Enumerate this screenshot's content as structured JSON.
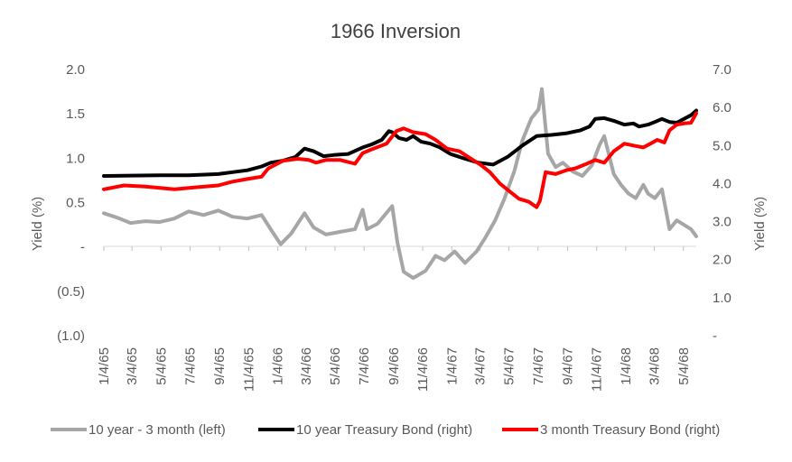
{
  "chart_data": {
    "type": "line",
    "title": "1966 Inversion",
    "ylabel_left": "Yield (%)",
    "ylabel_right": "Yield (%)",
    "ylim_left": [
      -1.0,
      2.0
    ],
    "ylim_right": [
      0.0,
      7.0
    ],
    "left_ticks": [
      {
        "value": 2.0,
        "label": "2.0"
      },
      {
        "value": 1.5,
        "label": "1.5"
      },
      {
        "value": 1.0,
        "label": "1.0"
      },
      {
        "value": 0.5,
        "label": "0.5"
      },
      {
        "value": 0.0,
        "label": "-"
      },
      {
        "value": -0.5,
        "label": "(0.5)"
      },
      {
        "value": -1.0,
        "label": "(1.0)"
      }
    ],
    "right_ticks": [
      {
        "value": 7.0,
        "label": "7.0"
      },
      {
        "value": 6.0,
        "label": "6.0"
      },
      {
        "value": 5.0,
        "label": "5.0"
      },
      {
        "value": 4.0,
        "label": "4.0"
      },
      {
        "value": 3.0,
        "label": "3.0"
      },
      {
        "value": 2.0,
        "label": "2.0"
      },
      {
        "value": 1.0,
        "label": "1.0"
      },
      {
        "value": 0.0,
        "label": "-"
      }
    ],
    "x_domain": [
      "1/4/65",
      "5/31/68"
    ],
    "x_ticks": [
      "1/4/65",
      "3/4/65",
      "5/4/65",
      "7/4/65",
      "9/4/65",
      "11/4/65",
      "1/4/66",
      "3/4/66",
      "5/4/66",
      "7/4/66",
      "9/4/66",
      "11/4/66",
      "1/4/67",
      "3/4/67",
      "5/4/67",
      "7/4/67",
      "9/4/67",
      "11/4/67",
      "1/4/68",
      "3/4/68",
      "5/4/68"
    ],
    "grid": false,
    "legend_position": "bottom",
    "series": [
      {
        "name": "10 year - 3 month (left)",
        "axis": "left",
        "color": "#a6a6a6",
        "points": [
          [
            "1/4/65",
            0.38
          ],
          [
            "2/1/65",
            0.33
          ],
          [
            "3/1/65",
            0.27
          ],
          [
            "4/1/65",
            0.29
          ],
          [
            "5/1/65",
            0.28
          ],
          [
            "6/1/65",
            0.32
          ],
          [
            "7/1/65",
            0.4
          ],
          [
            "8/1/65",
            0.36
          ],
          [
            "9/1/65",
            0.41
          ],
          [
            "10/1/65",
            0.34
          ],
          [
            "11/1/65",
            0.32
          ],
          [
            "12/1/65",
            0.36
          ],
          [
            "12/20/65",
            0.2
          ],
          [
            "1/10/66",
            0.03
          ],
          [
            "2/1/66",
            0.15
          ],
          [
            "3/1/66",
            0.38
          ],
          [
            "3/20/66",
            0.22
          ],
          [
            "4/15/66",
            0.14
          ],
          [
            "5/15/66",
            0.17
          ],
          [
            "6/15/66",
            0.2
          ],
          [
            "7/1/66",
            0.42
          ],
          [
            "7/10/66",
            0.2
          ],
          [
            "8/1/66",
            0.26
          ],
          [
            "9/1/66",
            0.46
          ],
          [
            "9/12/66",
            0.05
          ],
          [
            "9/25/66",
            -0.28
          ],
          [
            "10/15/66",
            -0.35
          ],
          [
            "11/10/66",
            -0.27
          ],
          [
            "12/1/66",
            -0.1
          ],
          [
            "12/20/66",
            -0.15
          ],
          [
            "1/10/67",
            -0.05
          ],
          [
            "2/1/67",
            -0.18
          ],
          [
            "2/25/67",
            -0.05
          ],
          [
            "3/15/67",
            0.1
          ],
          [
            "4/5/67",
            0.3
          ],
          [
            "4/25/67",
            0.55
          ],
          [
            "5/15/67",
            0.85
          ],
          [
            "6/1/67",
            1.2
          ],
          [
            "6/20/67",
            1.45
          ],
          [
            "7/5/67",
            1.55
          ],
          [
            "7/12/67",
            1.78
          ],
          [
            "7/25/67",
            1.05
          ],
          [
            "8/10/67",
            0.9
          ],
          [
            "8/25/67",
            0.95
          ],
          [
            "9/15/67",
            0.85
          ],
          [
            "10/5/67",
            0.8
          ],
          [
            "10/25/67",
            0.92
          ],
          [
            "11/10/67",
            1.15
          ],
          [
            "11/20/67",
            1.25
          ],
          [
            "12/10/67",
            0.82
          ],
          [
            "12/25/67",
            0.7
          ],
          [
            "1/10/68",
            0.6
          ],
          [
            "1/25/68",
            0.55
          ],
          [
            "2/10/68",
            0.7
          ],
          [
            "2/20/68",
            0.6
          ],
          [
            "3/5/68",
            0.55
          ],
          [
            "3/20/68",
            0.65
          ],
          [
            "4/5/68",
            0.2
          ],
          [
            "4/20/68",
            0.3
          ],
          [
            "5/5/68",
            0.25
          ],
          [
            "5/20/68",
            0.2
          ],
          [
            "5/31/68",
            0.12
          ]
        ]
      },
      {
        "name": "10 year Treasury Bond (right)",
        "axis": "right",
        "color": "#000000",
        "points": [
          [
            "1/4/65",
            4.2
          ],
          [
            "3/1/65",
            4.21
          ],
          [
            "5/1/65",
            4.22
          ],
          [
            "7/1/65",
            4.22
          ],
          [
            "9/1/65",
            4.25
          ],
          [
            "10/1/65",
            4.3
          ],
          [
            "11/1/65",
            4.35
          ],
          [
            "12/1/65",
            4.45
          ],
          [
            "12/20/65",
            4.55
          ],
          [
            "1/15/66",
            4.6
          ],
          [
            "2/10/66",
            4.7
          ],
          [
            "3/1/66",
            4.92
          ],
          [
            "3/20/66",
            4.85
          ],
          [
            "4/10/66",
            4.72
          ],
          [
            "5/1/66",
            4.75
          ],
          [
            "6/1/66",
            4.78
          ],
          [
            "7/1/66",
            4.95
          ],
          [
            "7/20/66",
            5.03
          ],
          [
            "8/10/66",
            5.15
          ],
          [
            "8/25/66",
            5.38
          ],
          [
            "9/1/66",
            5.35
          ],
          [
            "9/15/66",
            5.2
          ],
          [
            "10/1/66",
            5.15
          ],
          [
            "10/15/66",
            5.25
          ],
          [
            "11/1/66",
            5.1
          ],
          [
            "11/20/66",
            5.05
          ],
          [
            "12/10/66",
            4.95
          ],
          [
            "1/1/67",
            4.78
          ],
          [
            "2/1/67",
            4.65
          ],
          [
            "3/1/67",
            4.55
          ],
          [
            "4/1/67",
            4.5
          ],
          [
            "5/1/67",
            4.7
          ],
          [
            "6/1/67",
            5.0
          ],
          [
            "7/1/67",
            5.25
          ],
          [
            "8/1/67",
            5.28
          ],
          [
            "9/1/67",
            5.32
          ],
          [
            "10/1/67",
            5.4
          ],
          [
            "10/20/67",
            5.5
          ],
          [
            "11/1/67",
            5.7
          ],
          [
            "11/20/67",
            5.72
          ],
          [
            "12/10/67",
            5.65
          ],
          [
            "1/1/68",
            5.55
          ],
          [
            "1/20/68",
            5.58
          ],
          [
            "2/1/68",
            5.5
          ],
          [
            "2/20/68",
            5.55
          ],
          [
            "3/5/68",
            5.62
          ],
          [
            "3/20/68",
            5.7
          ],
          [
            "4/5/68",
            5.62
          ],
          [
            "4/20/68",
            5.6
          ],
          [
            "5/5/68",
            5.7
          ],
          [
            "5/20/68",
            5.8
          ],
          [
            "5/31/68",
            5.92
          ]
        ]
      },
      {
        "name": "3 month Treasury Bond (right)",
        "axis": "right",
        "color": "#ff0000",
        "points": [
          [
            "1/4/65",
            3.85
          ],
          [
            "2/15/65",
            3.95
          ],
          [
            "4/1/65",
            3.92
          ],
          [
            "6/1/65",
            3.85
          ],
          [
            "7/15/65",
            3.9
          ],
          [
            "9/1/65",
            3.95
          ],
          [
            "10/1/65",
            4.05
          ],
          [
            "11/1/65",
            4.12
          ],
          [
            "12/1/65",
            4.18
          ],
          [
            "12/15/65",
            4.4
          ],
          [
            "1/15/66",
            4.6
          ],
          [
            "2/15/66",
            4.65
          ],
          [
            "3/10/66",
            4.62
          ],
          [
            "3/25/66",
            4.55
          ],
          [
            "4/15/66",
            4.62
          ],
          [
            "5/15/66",
            4.62
          ],
          [
            "6/15/66",
            4.52
          ],
          [
            "7/1/66",
            4.8
          ],
          [
            "7/20/66",
            4.9
          ],
          [
            "8/20/66",
            5.05
          ],
          [
            "9/10/66",
            5.38
          ],
          [
            "9/25/66",
            5.45
          ],
          [
            "10/15/66",
            5.35
          ],
          [
            "11/10/66",
            5.3
          ],
          [
            "12/1/66",
            5.15
          ],
          [
            "12/25/66",
            4.92
          ],
          [
            "1/20/67",
            4.85
          ],
          [
            "2/10/67",
            4.68
          ],
          [
            "3/5/67",
            4.5
          ],
          [
            "3/25/67",
            4.3
          ],
          [
            "4/15/67",
            4.0
          ],
          [
            "5/5/67",
            3.8
          ],
          [
            "5/25/67",
            3.6
          ],
          [
            "6/15/67",
            3.52
          ],
          [
            "7/1/67",
            3.38
          ],
          [
            "7/8/67",
            3.55
          ],
          [
            "7/20/67",
            4.3
          ],
          [
            "8/10/67",
            4.25
          ],
          [
            "9/1/67",
            4.35
          ],
          [
            "9/20/67",
            4.4
          ],
          [
            "10/10/67",
            4.5
          ],
          [
            "11/1/67",
            4.62
          ],
          [
            "11/20/67",
            4.55
          ],
          [
            "12/10/67",
            4.85
          ],
          [
            "1/1/68",
            5.05
          ],
          [
            "1/20/68",
            5.0
          ],
          [
            "2/10/68",
            4.95
          ],
          [
            "2/25/68",
            5.05
          ],
          [
            "3/10/68",
            5.15
          ],
          [
            "3/25/68",
            5.08
          ],
          [
            "4/5/68",
            5.4
          ],
          [
            "4/20/68",
            5.55
          ],
          [
            "5/5/68",
            5.58
          ],
          [
            "5/20/68",
            5.6
          ],
          [
            "5/31/68",
            5.85
          ]
        ]
      }
    ]
  }
}
